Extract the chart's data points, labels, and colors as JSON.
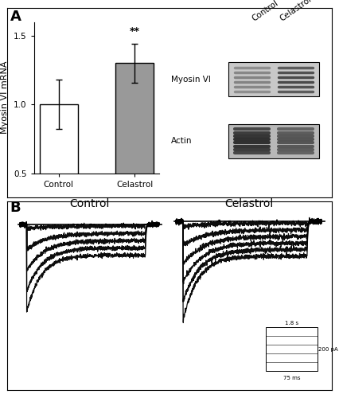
{
  "panel_A_label": "A",
  "panel_B_label": "B",
  "bar_categories": [
    "Control",
    "Celastrol"
  ],
  "bar_values": [
    1.0,
    1.3
  ],
  "bar_errors": [
    0.18,
    0.14
  ],
  "bar_colors": [
    "#ffffff",
    "#999999"
  ],
  "bar_edgecolor": "#000000",
  "ylabel": "Myosin VI mRNA",
  "ylim": [
    0.5,
    1.6
  ],
  "yticks": [
    0.5,
    1.0,
    1.5
  ],
  "significance_label": "**",
  "wb_label_myosin": "Myosin VI",
  "wb_label_actin": "Actin",
  "wb_col1": "Control",
  "wb_col2": "Celastrol",
  "bg_color": "#ffffff",
  "panel_label_fontsize": 13,
  "axis_fontsize": 8,
  "tick_fontsize": 7.5,
  "ctrl_title": "Control",
  "cela_title": "Celastrol",
  "scale_label_top": "1.8 s",
  "scale_label_right": "200 pA",
  "scale_label_bottom": "75 ms",
  "trace_color": "#000000",
  "n_traces_ctrl": 5,
  "n_traces_cela": 6
}
